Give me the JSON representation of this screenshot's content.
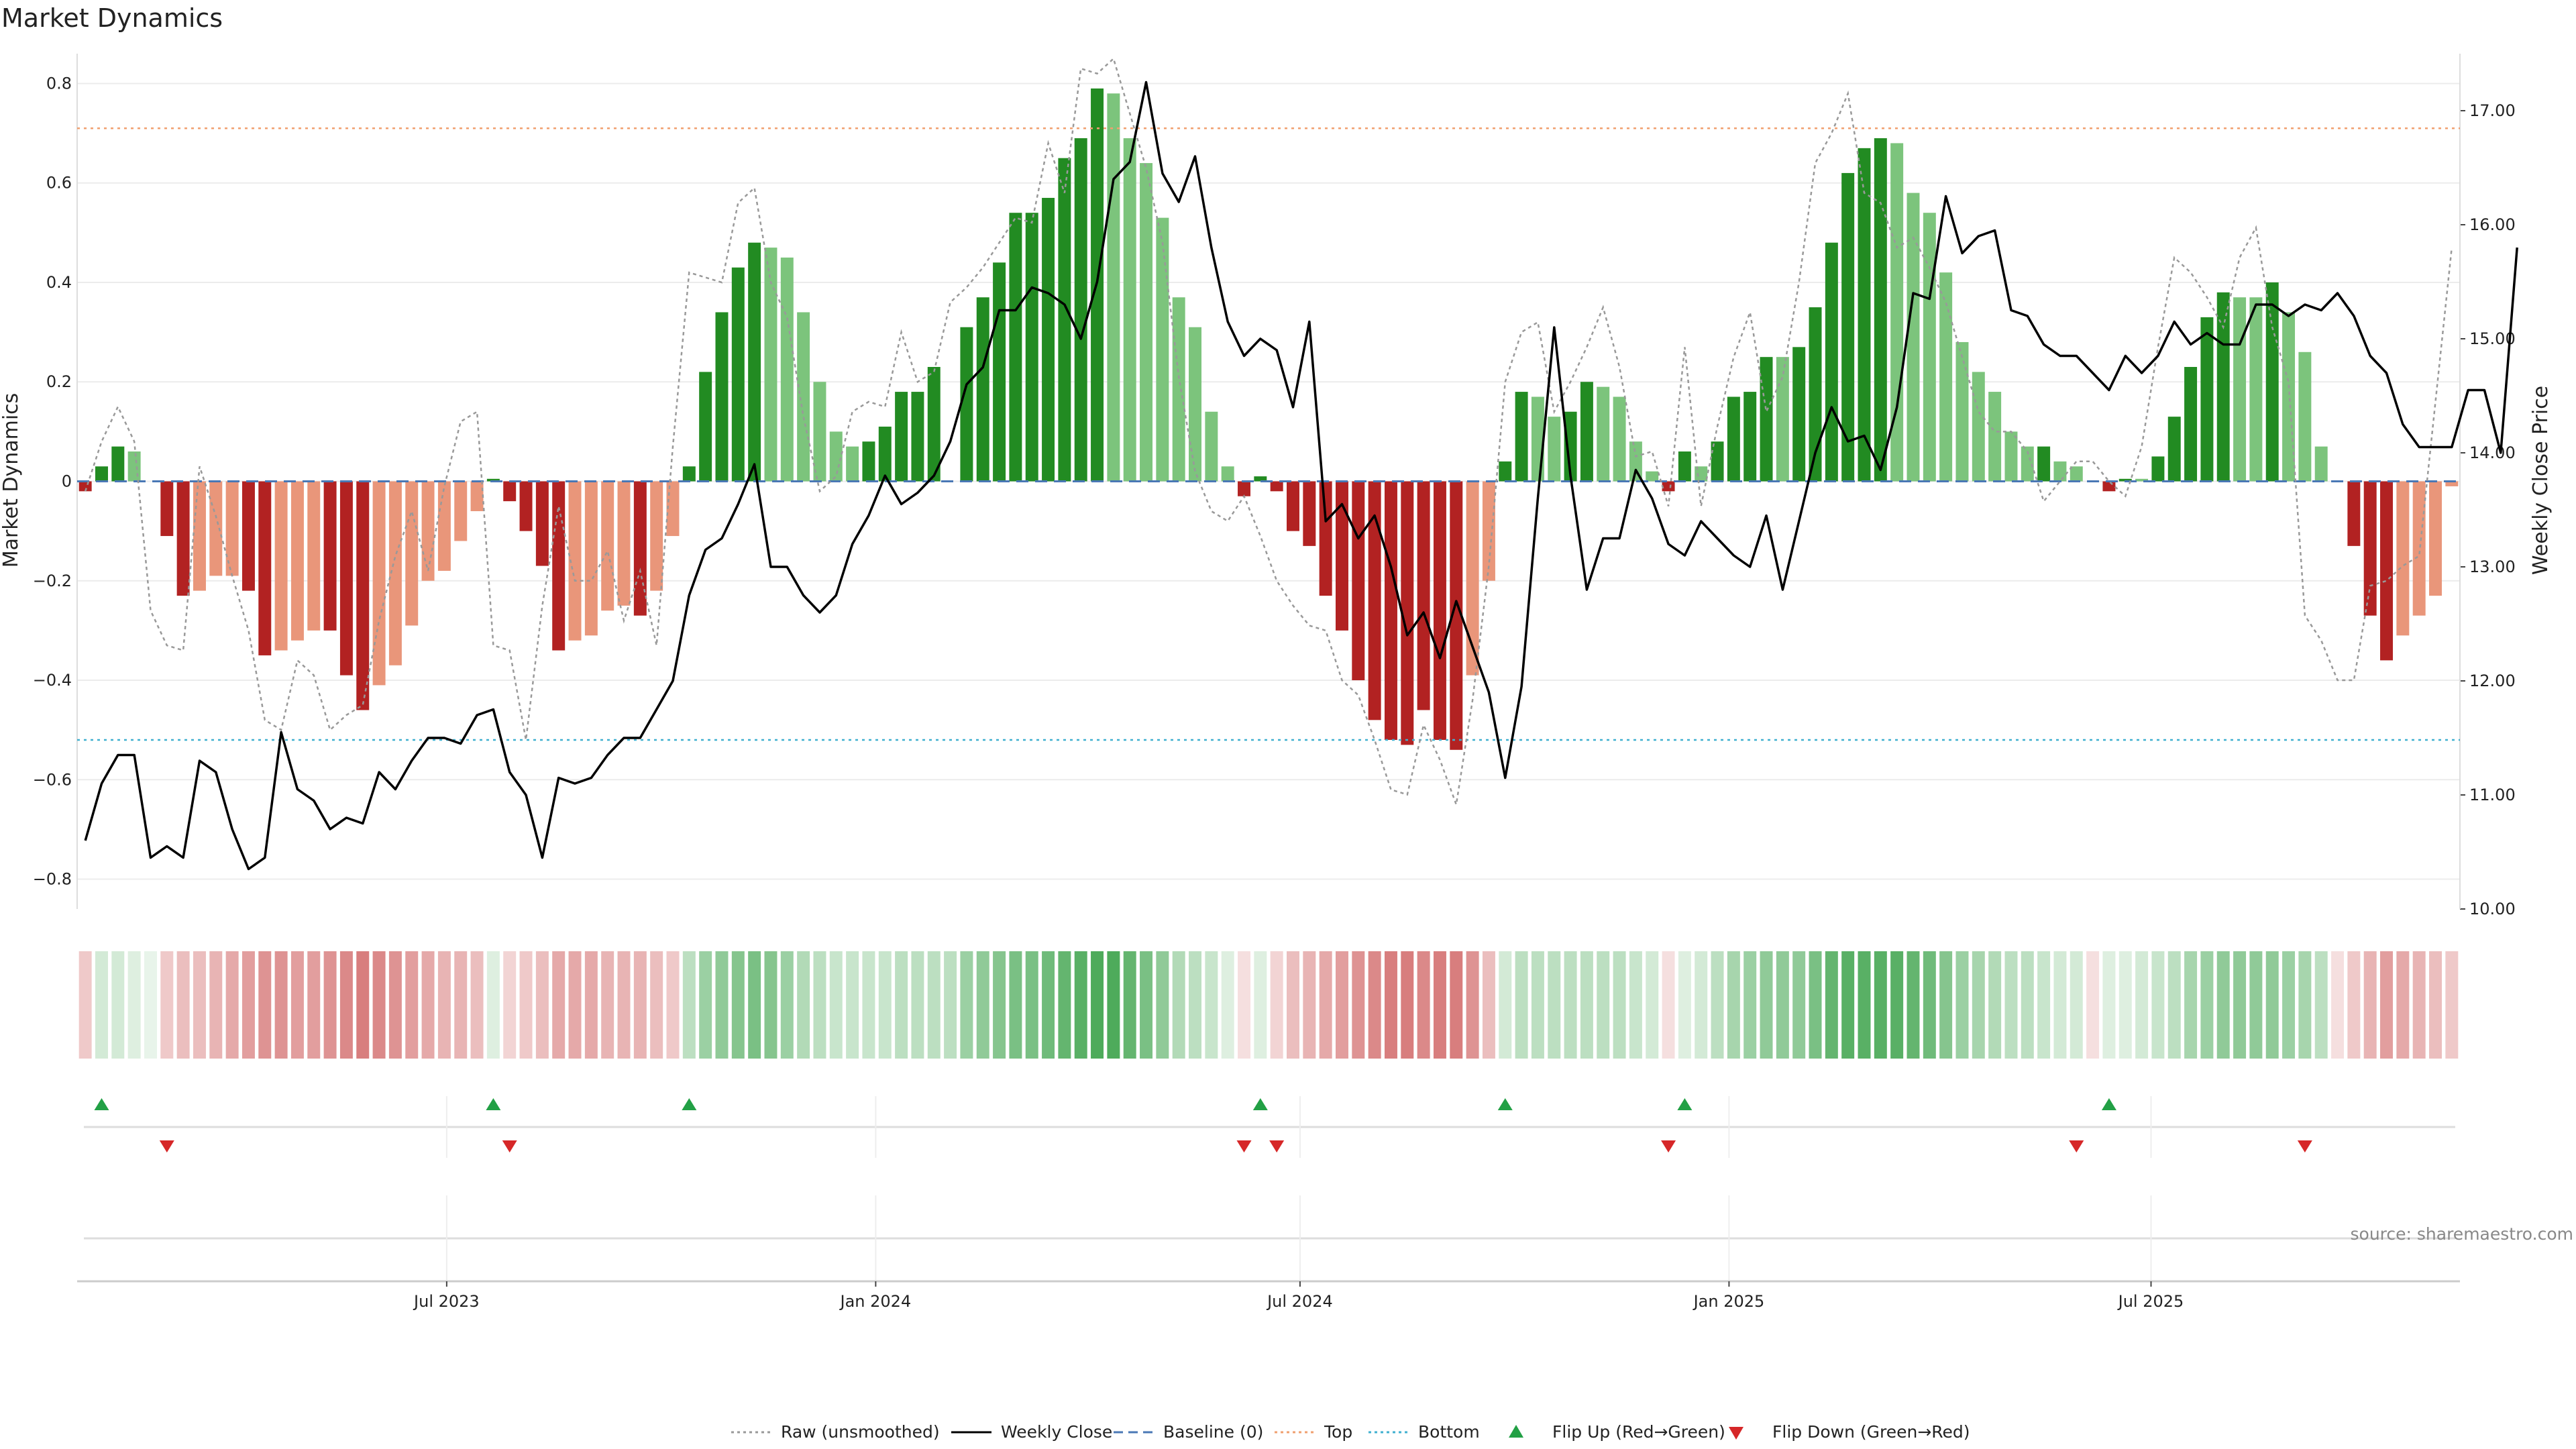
{
  "chart_data": {
    "type": "bar",
    "title": "Market Dynamics",
    "ylabel": "Market Dynamics",
    "y2label": "Weekly Close Price",
    "source": "source: sharemaestro.com",
    "ylim": [
      -0.86,
      0.86
    ],
    "y2lim": [
      10.0,
      17.5
    ],
    "yticks": [
      "−0.8",
      "−0.6",
      "−0.4",
      "−0.2",
      "0",
      "0.2",
      "0.4",
      "0.6",
      "0.8"
    ],
    "y2ticks": [
      "10.00",
      "11.00",
      "12.00",
      "13.00",
      "14.00",
      "15.00",
      "16.00",
      "17.00"
    ],
    "x_start": "2023-01-27",
    "x_ticks": [
      {
        "label": "Jul 2023",
        "date": "2023-07-01"
      },
      {
        "label": "Jan 2024",
        "date": "2024-01-01"
      },
      {
        "label": "Jul 2024",
        "date": "2024-07-01"
      },
      {
        "label": "Jan 2025",
        "date": "2025-01-01"
      },
      {
        "label": "Jul 2025",
        "date": "2025-07-01"
      }
    ],
    "top_line": 0.71,
    "bottom_line": -0.52,
    "bar_values": [
      -0.02,
      0.03,
      0.07,
      0.06,
      0,
      -0.11,
      -0.23,
      -0.22,
      -0.19,
      -0.19,
      -0.22,
      -0.35,
      -0.34,
      -0.32,
      -0.3,
      -0.3,
      -0.39,
      -0.46,
      -0.41,
      -0.37,
      -0.29,
      -0.2,
      -0.18,
      -0.12,
      -0.06,
      0.005,
      -0.04,
      -0.1,
      -0.17,
      -0.34,
      -0.32,
      -0.31,
      -0.26,
      -0.25,
      -0.27,
      -0.22,
      -0.11,
      0.03,
      0.22,
      0.34,
      0.43,
      0.48,
      0.47,
      0.45,
      0.34,
      0.2,
      0.1,
      0.07,
      0.08,
      0.11,
      0.18,
      0.18,
      0.23,
      0,
      0.31,
      0.37,
      0.44,
      0.54,
      0.54,
      0.57,
      0.65,
      0.69,
      0.79,
      0.78,
      0.69,
      0.64,
      0.53,
      0.37,
      0.31,
      0.14,
      0.03,
      -0.03,
      0.01,
      -0.02,
      -0.1,
      -0.13,
      -0.23,
      -0.3,
      -0.4,
      -0.48,
      -0.52,
      -0.53,
      -0.46,
      -0.52,
      -0.54,
      -0.39,
      -0.2,
      0.04,
      0.18,
      0.17,
      0.13,
      0.14,
      0.2,
      0.19,
      0.17,
      0.08,
      0.02,
      -0.02,
      0.06,
      0.03,
      0.08,
      0.17,
      0.18,
      0.25,
      0.25,
      0.27,
      0.35,
      0.48,
      0.62,
      0.67,
      0.69,
      0.68,
      0.58,
      0.54,
      0.42,
      0.28,
      0.22,
      0.18,
      0.1,
      0.07,
      0.07,
      0.04,
      0.03,
      0,
      -0.02,
      0.005,
      0.005,
      0.05,
      0.13,
      0.23,
      0.33,
      0.38,
      0.37,
      0.37,
      0.4,
      0.34,
      0.26,
      0.07,
      0,
      -0.13,
      -0.27,
      -0.36,
      -0.31,
      -0.27,
      -0.23,
      -0.01
    ],
    "bar_colors": [
      "#b22222",
      "#228b22",
      "#228b22",
      "#7cc47c",
      "#228b22",
      "#b22222",
      "#b22222",
      "#e9967a",
      "#e9967a",
      "#e9967a",
      "#b22222",
      "#b22222",
      "#e9967a",
      "#e9967a",
      "#e9967a",
      "#b22222",
      "#b22222",
      "#b22222",
      "#e9967a",
      "#e9967a",
      "#e9967a",
      "#e9967a",
      "#e9967a",
      "#e9967a",
      "#e9967a",
      "#228b22",
      "#b22222",
      "#b22222",
      "#b22222",
      "#b22222",
      "#e9967a",
      "#e9967a",
      "#e9967a",
      "#e9967a",
      "#b22222",
      "#e9967a",
      "#e9967a",
      "#228b22",
      "#228b22",
      "#228b22",
      "#228b22",
      "#228b22",
      "#7cc47c",
      "#7cc47c",
      "#7cc47c",
      "#7cc47c",
      "#7cc47c",
      "#7cc47c",
      "#228b22",
      "#228b22",
      "#228b22",
      "#228b22",
      "#228b22",
      "#228b22",
      "#228b22",
      "#228b22",
      "#228b22",
      "#228b22",
      "#228b22",
      "#228b22",
      "#228b22",
      "#228b22",
      "#228b22",
      "#7cc47c",
      "#7cc47c",
      "#7cc47c",
      "#7cc47c",
      "#7cc47c",
      "#7cc47c",
      "#7cc47c",
      "#7cc47c",
      "#b22222",
      "#228b22",
      "#b22222",
      "#b22222",
      "#b22222",
      "#b22222",
      "#b22222",
      "#b22222",
      "#b22222",
      "#b22222",
      "#b22222",
      "#b22222",
      "#b22222",
      "#b22222",
      "#e9967a",
      "#e9967a",
      "#228b22",
      "#228b22",
      "#7cc47c",
      "#7cc47c",
      "#228b22",
      "#228b22",
      "#7cc47c",
      "#7cc47c",
      "#7cc47c",
      "#7cc47c",
      "#b22222",
      "#228b22",
      "#7cc47c",
      "#228b22",
      "#228b22",
      "#228b22",
      "#228b22",
      "#7cc47c",
      "#228b22",
      "#228b22",
      "#228b22",
      "#228b22",
      "#228b22",
      "#228b22",
      "#7cc47c",
      "#7cc47c",
      "#7cc47c",
      "#7cc47c",
      "#7cc47c",
      "#7cc47c",
      "#7cc47c",
      "#7cc47c",
      "#7cc47c",
      "#228b22",
      "#7cc47c",
      "#7cc47c",
      "#7cc47c",
      "#b22222",
      "#228b22",
      "#7cc47c",
      "#228b22",
      "#228b22",
      "#228b22",
      "#228b22",
      "#228b22",
      "#7cc47c",
      "#7cc47c",
      "#228b22",
      "#7cc47c",
      "#7cc47c",
      "#7cc47c",
      "#b22222",
      "#b22222",
      "#b22222",
      "#b22222",
      "#e9967a",
      "#e9967a",
      "#e9967a",
      "#e9967a",
      "#e9967a"
    ],
    "raw_values": [
      -0.02,
      0.08,
      0.15,
      0.08,
      -0.26,
      -0.33,
      -0.34,
      0.03,
      -0.07,
      -0.19,
      -0.3,
      -0.48,
      -0.5,
      -0.36,
      -0.39,
      -0.5,
      -0.47,
      -0.45,
      -0.28,
      -0.15,
      -0.06,
      -0.18,
      -0.01,
      0.12,
      0.14,
      -0.33,
      -0.34,
      -0.52,
      -0.25,
      -0.05,
      -0.2,
      -0.2,
      -0.14,
      -0.28,
      -0.18,
      -0.33,
      0.07,
      0.42,
      0.41,
      0.4,
      0.56,
      0.59,
      0.4,
      0.33,
      0.13,
      -0.02,
      0.01,
      0.14,
      0.16,
      0.15,
      0.3,
      0.2,
      0.22,
      0.36,
      0.39,
      0.43,
      0.48,
      0.53,
      0.52,
      0.68,
      0.58,
      0.83,
      0.82,
      0.85,
      0.74,
      0.63,
      0.48,
      0.21,
      0.02,
      -0.06,
      -0.08,
      -0.03,
      -0.11,
      -0.2,
      -0.25,
      -0.29,
      -0.3,
      -0.4,
      -0.43,
      -0.52,
      -0.62,
      -0.63,
      -0.49,
      -0.56,
      -0.65,
      -0.44,
      -0.17,
      0.2,
      0.3,
      0.32,
      0.14,
      0.2,
      0.27,
      0.35,
      0.23,
      0.05,
      0.06,
      -0.05,
      0.27,
      -0.05,
      0.11,
      0.25,
      0.34,
      0.14,
      0.21,
      0.4,
      0.64,
      0.7,
      0.78,
      0.58,
      0.56,
      0.47,
      0.49,
      0.43,
      0.36,
      0.25,
      0.14,
      0.1,
      0.1,
      0.06,
      -0.04,
      0.0,
      0.04,
      0.04,
      0.0,
      -0.03,
      0.07,
      0.27,
      0.45,
      0.42,
      0.37,
      0.31,
      0.45,
      0.51,
      0.31,
      0.2,
      -0.27,
      -0.32,
      -0.4,
      -0.4,
      -0.21,
      -0.2,
      -0.17,
      -0.15,
      0.16,
      0.47
    ],
    "close_values": [
      10.6,
      11.1,
      11.35,
      11.35,
      10.45,
      10.55,
      10.45,
      11.3,
      11.2,
      10.7,
      10.35,
      10.45,
      11.55,
      11.05,
      10.95,
      10.7,
      10.8,
      10.75,
      11.2,
      11.05,
      11.3,
      11.5,
      11.5,
      11.45,
      11.7,
      11.75,
      11.2,
      11.0,
      10.45,
      11.15,
      11.1,
      11.15,
      11.35,
      11.5,
      11.5,
      11.75,
      12.0,
      12.75,
      13.15,
      13.25,
      13.55,
      13.9,
      13.0,
      13.0,
      12.75,
      12.6,
      12.75,
      13.2,
      13.45,
      13.8,
      13.55,
      13.65,
      13.8,
      14.1,
      14.6,
      14.75,
      15.25,
      15.25,
      15.45,
      15.4,
      15.3,
      15.0,
      15.5,
      16.4,
      16.55,
      17.25,
      16.45,
      16.2,
      16.6,
      15.8,
      15.15,
      14.85,
      15.0,
      14.9,
      14.4,
      15.15,
      13.4,
      13.55,
      13.25,
      13.45,
      13.0,
      12.4,
      12.6,
      12.2,
      12.7,
      12.3,
      11.9,
      11.15,
      11.95,
      13.6,
      15.1,
      13.8,
      12.8,
      13.25,
      13.25,
      13.85,
      13.6,
      13.2,
      13.1,
      13.4,
      13.25,
      13.1,
      13.0,
      13.45,
      12.8,
      13.4,
      14.0,
      14.4,
      14.1,
      14.15,
      13.85,
      14.4,
      15.4,
      15.35,
      16.25,
      15.75,
      15.9,
      15.95,
      15.25,
      15.2,
      14.95,
      14.85,
      14.85,
      14.7,
      14.55,
      14.85,
      14.7,
      14.85,
      15.15,
      14.95,
      15.05,
      14.95,
      14.95,
      15.3,
      15.3,
      15.2,
      15.3,
      15.25,
      15.4,
      15.2,
      14.85,
      14.7,
      14.25,
      14.05,
      14.05,
      14.05,
      14.55,
      14.55,
      14.0,
      15.8
    ],
    "baseline": 0,
    "heat_strip": [
      0.25,
      0.2,
      0.2,
      0.15,
      0.1,
      0.25,
      0.3,
      0.3,
      0.35,
      0.4,
      0.45,
      0.5,
      0.5,
      0.45,
      0.45,
      0.5,
      0.55,
      0.6,
      0.55,
      0.5,
      0.45,
      0.4,
      0.35,
      0.35,
      0.3,
      0.15,
      0.2,
      0.25,
      0.3,
      0.4,
      0.4,
      0.4,
      0.35,
      0.35,
      0.35,
      0.3,
      0.25,
      0.3,
      0.45,
      0.5,
      0.55,
      0.6,
      0.55,
      0.45,
      0.35,
      0.3,
      0.25,
      0.25,
      0.25,
      0.25,
      0.3,
      0.3,
      0.3,
      0.3,
      0.45,
      0.5,
      0.55,
      0.6,
      0.6,
      0.65,
      0.7,
      0.75,
      0.8,
      0.8,
      0.7,
      0.6,
      0.5,
      0.35,
      0.3,
      0.25,
      0.15,
      0.15,
      0.15,
      0.2,
      0.3,
      0.35,
      0.4,
      0.45,
      0.5,
      0.55,
      0.6,
      0.6,
      0.55,
      0.6,
      0.6,
      0.5,
      0.3,
      0.2,
      0.3,
      0.3,
      0.3,
      0.3,
      0.3,
      0.3,
      0.3,
      0.25,
      0.2,
      0.15,
      0.15,
      0.2,
      0.3,
      0.4,
      0.45,
      0.5,
      0.5,
      0.5,
      0.6,
      0.7,
      0.75,
      0.75,
      0.75,
      0.75,
      0.7,
      0.65,
      0.55,
      0.45,
      0.4,
      0.35,
      0.3,
      0.3,
      0.25,
      0.2,
      0.2,
      0.15,
      0.15,
      0.15,
      0.2,
      0.25,
      0.3,
      0.4,
      0.45,
      0.5,
      0.5,
      0.5,
      0.5,
      0.45,
      0.4,
      0.3,
      0.15,
      0.25,
      0.35,
      0.45,
      0.4,
      0.35,
      0.3,
      0.25
    ],
    "heat_sign": [
      -1,
      1,
      1,
      1,
      1,
      -1,
      -1,
      -1,
      -1,
      -1,
      -1,
      -1,
      -1,
      -1,
      -1,
      -1,
      -1,
      -1,
      -1,
      -1,
      -1,
      -1,
      -1,
      -1,
      -1,
      1,
      -1,
      -1,
      -1,
      -1,
      -1,
      -1,
      -1,
      -1,
      -1,
      -1,
      -1,
      1,
      1,
      1,
      1,
      1,
      1,
      1,
      1,
      1,
      1,
      1,
      1,
      1,
      1,
      1,
      1,
      1,
      1,
      1,
      1,
      1,
      1,
      1,
      1,
      1,
      1,
      1,
      1,
      1,
      1,
      1,
      1,
      1,
      1,
      -1,
      1,
      -1,
      -1,
      -1,
      -1,
      -1,
      -1,
      -1,
      -1,
      -1,
      -1,
      -1,
      -1,
      -1,
      -1,
      1,
      1,
      1,
      1,
      1,
      1,
      1,
      1,
      1,
      1,
      -1,
      1,
      1,
      1,
      1,
      1,
      1,
      1,
      1,
      1,
      1,
      1,
      1,
      1,
      1,
      1,
      1,
      1,
      1,
      1,
      1,
      1,
      1,
      1,
      1,
      1,
      -1,
      1,
      1,
      1,
      1,
      1,
      1,
      1,
      1,
      1,
      1,
      1,
      1,
      1,
      1,
      -1,
      -1,
      -1,
      -1,
      -1,
      -1,
      -1,
      -1,
      -1
    ],
    "flip_up_idx": [
      1,
      25,
      37,
      72,
      87,
      98,
      124
    ],
    "flip_down_idx": [
      5,
      26,
      71,
      73,
      97,
      122,
      136
    ],
    "legend": [
      {
        "label": "Raw (unsmoothed)",
        "marker": "dotted-line",
        "color": "#999999"
      },
      {
        "label": "Weekly Close",
        "marker": "solid-line",
        "color": "#000000"
      },
      {
        "label": "Baseline (0)",
        "marker": "dashed-line",
        "color": "#4a78b5"
      },
      {
        "label": "Top",
        "marker": "dotted-line",
        "color": "#f0a070"
      },
      {
        "label": "Bottom",
        "marker": "dotted-line",
        "color": "#40b0d0"
      },
      {
        "label": "Flip Up (Red→Green)",
        "marker": "triangle-up",
        "color": "#22a045"
      },
      {
        "label": "Flip Down (Green→Red)",
        "marker": "triangle-down",
        "color": "#d62728"
      }
    ]
  }
}
